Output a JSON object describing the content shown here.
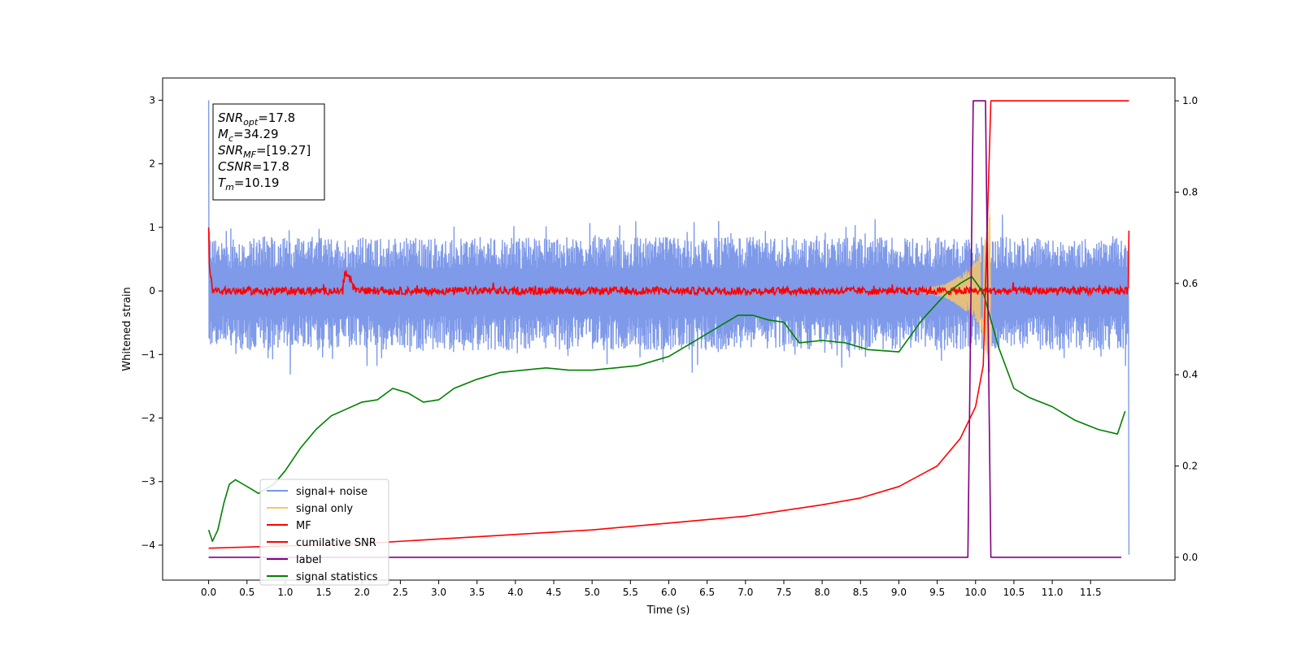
{
  "chart_data": {
    "type": "line",
    "xlabel": "Time (s)",
    "ylabel": "Whitened strain",
    "xlim": [
      -0.6,
      12.6
    ],
    "ylim": [
      -4.55,
      3.35
    ],
    "y2lim": [
      -0.05,
      1.05
    ],
    "x_ticks": [
      "0.0",
      "0.5",
      "1.0",
      "1.5",
      "2.0",
      "2.5",
      "3.0",
      "3.5",
      "4.0",
      "4.5",
      "5.0",
      "5.5",
      "6.0",
      "6.5",
      "7.0",
      "7.5",
      "8.0",
      "8.5",
      "9.0",
      "9.5",
      "10.0",
      "10.5",
      "11.0",
      "11.5"
    ],
    "y_ticks": [
      "−4",
      "−3",
      "−2",
      "−1",
      "0",
      "1",
      "2",
      "3"
    ],
    "y2_ticks": [
      "0.0",
      "0.2",
      "0.4",
      "0.6",
      "0.8",
      "1.0"
    ],
    "annotation": {
      "lines": [
        {
          "sym": "SNR",
          "sub": "opt",
          "val": "=17.8"
        },
        {
          "sym": "M",
          "sub": "c",
          "val": "=34.29"
        },
        {
          "sym": "SNR",
          "sub": "MF",
          "val": "=[19.27]"
        },
        {
          "sym": "CSNR",
          "sub": "",
          "val": "=17.8"
        },
        {
          "sym": "T",
          "sub": "m",
          "val": "=10.19"
        }
      ]
    },
    "series": [
      {
        "name": "signal+ noise",
        "color": "#7895e8",
        "axis": "left",
        "envelope": {
          "x": [
            0,
            12
          ],
          "upper": 1.0,
          "lower": -1.1,
          "start_spike": 3.0,
          "end_spike": -4.15
        }
      },
      {
        "name": "signal only",
        "color": "#f5c66b",
        "axis": "left",
        "x": [
          9.3,
          9.6,
          9.8,
          10.0,
          10.1,
          10.19,
          10.2
        ],
        "amplitude": [
          0.03,
          0.1,
          0.25,
          0.45,
          0.7,
          1.3,
          0.0
        ]
      },
      {
        "name": "MF",
        "color": "#ff0000",
        "axis": "left",
        "peak_x": 1.8,
        "peak_y": 0.3,
        "start_y": 1.0,
        "end_y": 0.95
      },
      {
        "name": "cumilative SNR",
        "color": "#ff0000",
        "axis": "right",
        "x": [
          0.0,
          1.0,
          2.0,
          3.0,
          4.0,
          5.0,
          6.0,
          7.0,
          8.0,
          8.5,
          9.0,
          9.5,
          9.8,
          10.0,
          10.1,
          10.2,
          12.0
        ],
        "y": [
          0.02,
          0.025,
          0.03,
          0.04,
          0.05,
          0.06,
          0.075,
          0.09,
          0.115,
          0.13,
          0.155,
          0.2,
          0.26,
          0.33,
          0.42,
          1.0,
          1.0
        ]
      },
      {
        "name": "label",
        "color": "#800080",
        "axis": "right",
        "x": [
          0.0,
          9.9,
          9.97,
          10.13,
          10.2,
          11.9
        ],
        "y": [
          0.0,
          0.0,
          1.0,
          1.0,
          0.0,
          0.0
        ]
      },
      {
        "name": "signal statistics",
        "color": "#008000",
        "axis": "right",
        "x": [
          0.0,
          0.05,
          0.12,
          0.2,
          0.27,
          0.35,
          0.45,
          0.55,
          0.65,
          0.75,
          0.85,
          1.0,
          1.2,
          1.4,
          1.6,
          1.8,
          2.0,
          2.2,
          2.4,
          2.6,
          2.8,
          3.0,
          3.2,
          3.5,
          3.8,
          4.1,
          4.4,
          4.7,
          5.0,
          5.3,
          5.6,
          6.0,
          6.3,
          6.6,
          6.9,
          7.1,
          7.3,
          7.5,
          7.7,
          8.0,
          8.3,
          8.6,
          9.0,
          9.3,
          9.6,
          9.8,
          9.95,
          10.1,
          10.3,
          10.5,
          10.7,
          11.0,
          11.3,
          11.6,
          11.85,
          11.95
        ],
        "y": [
          0.06,
          0.035,
          0.06,
          0.12,
          0.16,
          0.17,
          0.16,
          0.15,
          0.14,
          0.15,
          0.16,
          0.19,
          0.24,
          0.28,
          0.31,
          0.325,
          0.34,
          0.345,
          0.37,
          0.36,
          0.34,
          0.345,
          0.37,
          0.39,
          0.405,
          0.41,
          0.415,
          0.41,
          0.41,
          0.415,
          0.42,
          0.44,
          0.47,
          0.5,
          0.53,
          0.53,
          0.52,
          0.515,
          0.47,
          0.475,
          0.47,
          0.455,
          0.45,
          0.52,
          0.575,
          0.6,
          0.615,
          0.58,
          0.46,
          0.37,
          0.35,
          0.33,
          0.3,
          0.28,
          0.27,
          0.32
        ]
      }
    ],
    "legend": {
      "position": "lower-left"
    }
  }
}
